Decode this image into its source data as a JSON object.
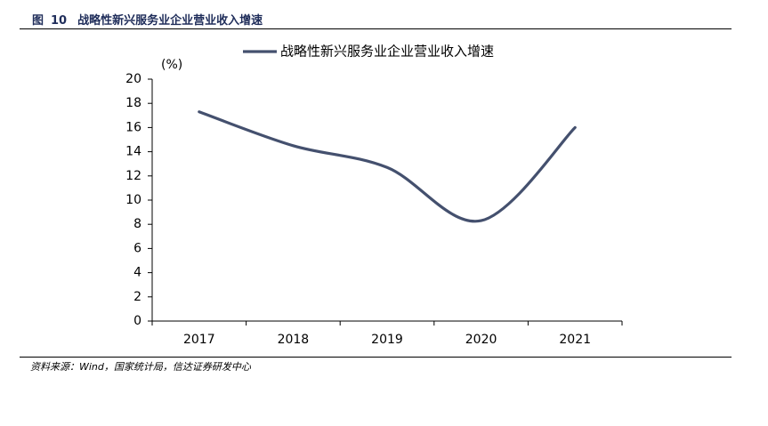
{
  "figure": {
    "label": "图",
    "number": "10",
    "title": "战略性新兴服务业企业营业收入增速",
    "source": "资料来源：Wind，国家统计局，信达证券研发中心"
  },
  "chart_data": {
    "type": "line",
    "categories": [
      "2017",
      "2018",
      "2019",
      "2020",
      "2021"
    ],
    "series": [
      {
        "name": "战略性新兴服务业企业营业收入增速",
        "values": [
          17.3,
          14.5,
          12.7,
          8.3,
          16.0
        ],
        "color": "#44506e"
      }
    ],
    "ylabel": "(%)",
    "ylim": [
      0,
      20
    ],
    "yticks": [
      0,
      2,
      4,
      6,
      8,
      10,
      12,
      14,
      16,
      18,
      20
    ],
    "grid": false,
    "legend": "top",
    "smooth": true
  }
}
